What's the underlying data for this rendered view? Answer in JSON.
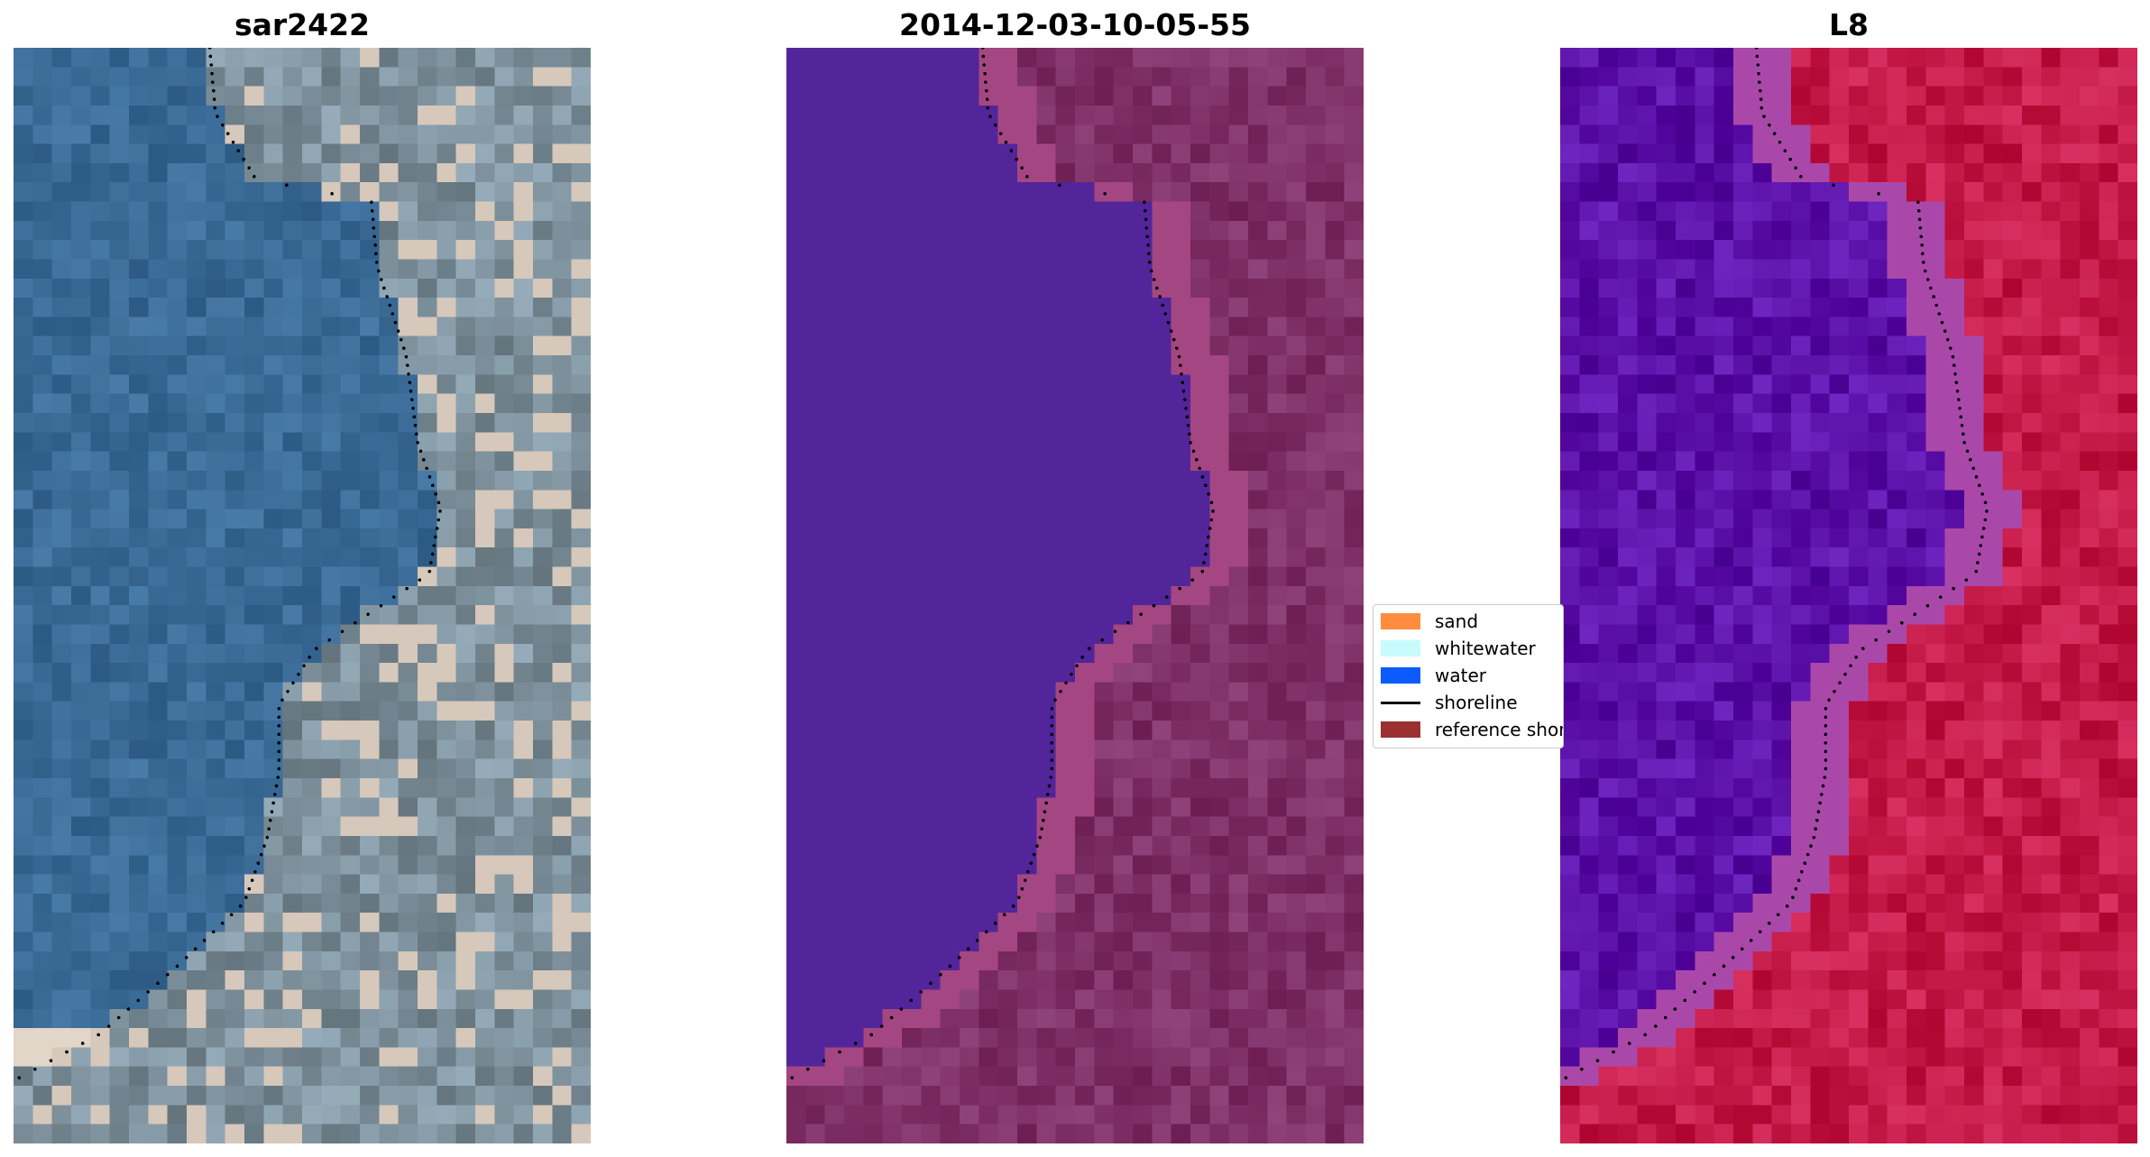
{
  "panels": [
    {
      "title": "sar2422",
      "image": "true-color RGB satellite tile of a coastline",
      "palette": "rgb"
    },
    {
      "title": "2014-12-03-10-05-55",
      "image": "classified image overlay",
      "palette": "classified"
    },
    {
      "title": "L8",
      "image": "band index image",
      "palette": "index"
    }
  ],
  "legend": {
    "items": [
      {
        "label": "sand",
        "color": "#ff8c3f",
        "kind": "patch"
      },
      {
        "label": "whitewater",
        "color": "#c8fcfc",
        "kind": "patch"
      },
      {
        "label": "water",
        "color": "#0a5cff",
        "kind": "patch"
      },
      {
        "label": "shoreline",
        "color": "#000000",
        "kind": "line"
      },
      {
        "label": "reference shoreline",
        "color": "#9a3030",
        "kind": "patch"
      }
    ]
  },
  "colors": {
    "water_class": "#52259a",
    "land_class": "#7e3066",
    "index_water": "#5b10a8",
    "index_land": "#c41a48",
    "rgb_water": "#3a6a96",
    "rgb_land": "#8296a2"
  }
}
